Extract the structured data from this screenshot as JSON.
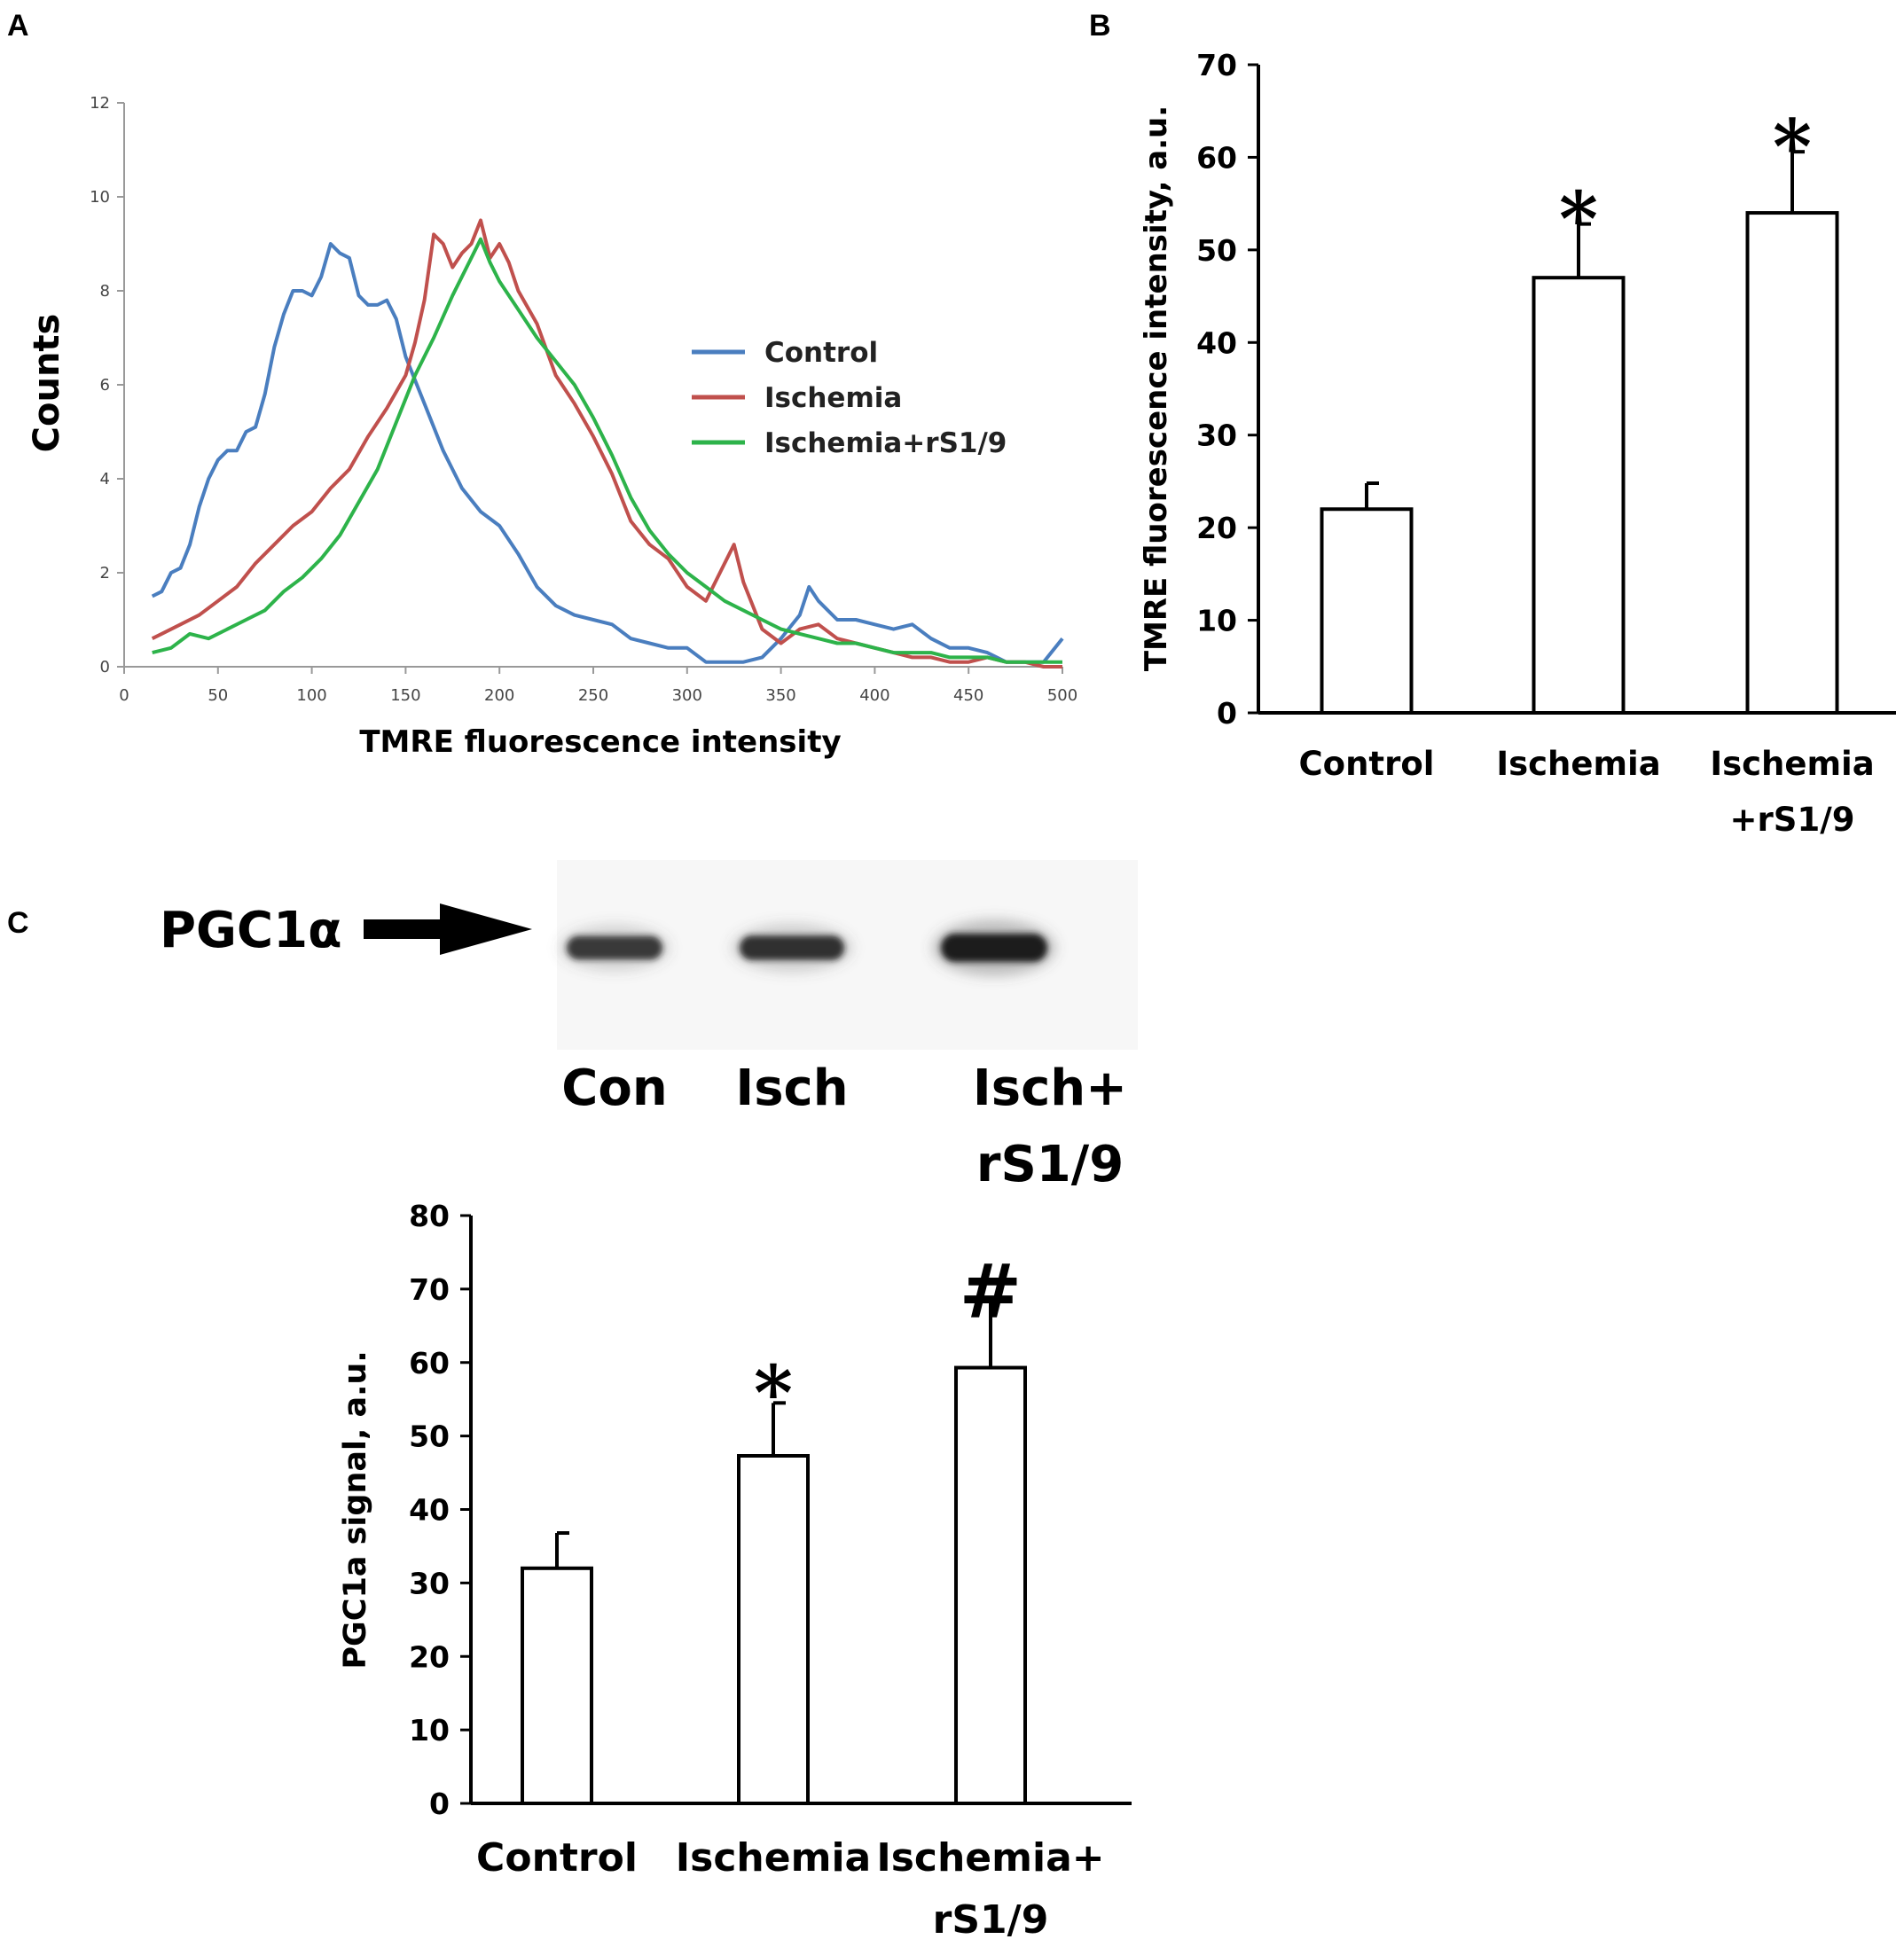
{
  "figure": {
    "panel_letters": [
      "A",
      "B",
      "C"
    ]
  },
  "chart_data": [
    {
      "panel": "A",
      "type": "line",
      "title": "",
      "xlabel": "TMRE fluorescence intensity",
      "ylabel": "Counts",
      "xlim": [
        0,
        500
      ],
      "ylim": [
        0,
        12
      ],
      "xticks": [
        0,
        50,
        100,
        150,
        200,
        250,
        300,
        350,
        400,
        450,
        500
      ],
      "yticks": [
        0,
        2,
        4,
        6,
        8,
        10,
        12
      ],
      "legend_position": "right",
      "series": [
        {
          "name": "Control",
          "color": "#4a7ebf",
          "x": [
            15,
            20,
            25,
            30,
            35,
            40,
            45,
            50,
            55,
            60,
            65,
            70,
            75,
            80,
            85,
            90,
            95,
            100,
            105,
            110,
            115,
            120,
            125,
            130,
            135,
            140,
            145,
            150,
            160,
            170,
            180,
            190,
            200,
            210,
            220,
            230,
            240,
            250,
            260,
            270,
            280,
            290,
            300,
            310,
            320,
            330,
            340,
            350,
            360,
            365,
            370,
            375,
            380,
            390,
            400,
            410,
            420,
            430,
            440,
            450,
            460,
            470,
            480,
            490,
            500
          ],
          "y": [
            1.5,
            1.6,
            2.0,
            2.1,
            2.6,
            3.4,
            4.0,
            4.4,
            4.6,
            4.6,
            5.0,
            5.1,
            5.8,
            6.8,
            7.5,
            8.0,
            8.0,
            7.9,
            8.3,
            9.0,
            8.8,
            8.7,
            7.9,
            7.7,
            7.7,
            7.8,
            7.4,
            6.6,
            5.6,
            4.6,
            3.8,
            3.3,
            3.0,
            2.4,
            1.7,
            1.3,
            1.1,
            1.0,
            0.9,
            0.6,
            0.5,
            0.4,
            0.4,
            0.1,
            0.1,
            0.1,
            0.2,
            0.6,
            1.1,
            1.7,
            1.4,
            1.2,
            1.0,
            1.0,
            0.9,
            0.8,
            0.9,
            0.6,
            0.4,
            0.4,
            0.3,
            0.1,
            0.1,
            0.1,
            0.6
          ]
        },
        {
          "name": "Ischemia",
          "color": "#c0504d",
          "x": [
            15,
            20,
            30,
            40,
            50,
            60,
            70,
            80,
            90,
            100,
            110,
            120,
            130,
            140,
            150,
            155,
            160,
            165,
            170,
            175,
            180,
            185,
            190,
            195,
            200,
            205,
            210,
            220,
            230,
            240,
            250,
            260,
            270,
            280,
            290,
            300,
            310,
            320,
            325,
            330,
            340,
            350,
            360,
            370,
            380,
            390,
            400,
            410,
            420,
            430,
            440,
            450,
            460,
            470,
            480,
            490,
            500
          ],
          "y": [
            0.6,
            0.7,
            0.9,
            1.1,
            1.4,
            1.7,
            2.2,
            2.6,
            3.0,
            3.3,
            3.8,
            4.2,
            4.9,
            5.5,
            6.2,
            6.9,
            7.8,
            9.2,
            9.0,
            8.5,
            8.8,
            9.0,
            9.5,
            8.7,
            9.0,
            8.6,
            8.0,
            7.3,
            6.2,
            5.6,
            4.9,
            4.1,
            3.1,
            2.6,
            2.3,
            1.7,
            1.4,
            2.2,
            2.6,
            1.8,
            0.8,
            0.5,
            0.8,
            0.9,
            0.6,
            0.5,
            0.4,
            0.3,
            0.2,
            0.2,
            0.1,
            0.1,
            0.2,
            0.1,
            0.1,
            0.0,
            0.0
          ]
        },
        {
          "name": "Ischemia+rS1/9",
          "color": "#2db34a",
          "x": [
            15,
            25,
            35,
            45,
            55,
            65,
            75,
            85,
            95,
            105,
            115,
            125,
            135,
            145,
            155,
            165,
            175,
            185,
            190,
            195,
            200,
            210,
            220,
            230,
            240,
            250,
            260,
            270,
            280,
            290,
            300,
            310,
            320,
            330,
            340,
            350,
            360,
            370,
            380,
            390,
            400,
            410,
            420,
            430,
            440,
            450,
            460,
            470,
            480,
            490,
            500
          ],
          "y": [
            0.3,
            0.4,
            0.7,
            0.6,
            0.8,
            1.0,
            1.2,
            1.6,
            1.9,
            2.3,
            2.8,
            3.5,
            4.2,
            5.2,
            6.2,
            7.0,
            7.9,
            8.7,
            9.1,
            8.6,
            8.2,
            7.6,
            7.0,
            6.5,
            6.0,
            5.3,
            4.5,
            3.6,
            2.9,
            2.4,
            2.0,
            1.7,
            1.4,
            1.2,
            1.0,
            0.8,
            0.7,
            0.6,
            0.5,
            0.5,
            0.4,
            0.3,
            0.3,
            0.3,
            0.2,
            0.2,
            0.2,
            0.1,
            0.1,
            0.1,
            0.1
          ]
        }
      ]
    },
    {
      "panel": "B",
      "type": "bar",
      "title": "",
      "xlabel": "",
      "ylabel": "TMRE fluorescence intensity, a.u.",
      "ylim": [
        0,
        70
      ],
      "yticks": [
        0,
        10,
        20,
        30,
        40,
        50,
        60,
        70
      ],
      "categories": [
        [
          "Control"
        ],
        [
          "Ischemia"
        ],
        [
          "Ischemia",
          "+rS1/9"
        ]
      ],
      "values": [
        22,
        47,
        54
      ],
      "errors": [
        2.8,
        5.8,
        6.6
      ],
      "annotations": [
        "",
        "*",
        "*"
      ]
    },
    {
      "panel": "C",
      "type": "bar",
      "title": "",
      "xlabel": "",
      "ylabel": "PGC1a signal, a.u.",
      "ylim": [
        0,
        80
      ],
      "yticks": [
        0,
        10,
        20,
        30,
        40,
        50,
        60,
        70,
        80
      ],
      "categories": [
        [
          "Control"
        ],
        [
          "Ischemia"
        ],
        [
          "Ischemia+",
          "rS1/9"
        ]
      ],
      "values": [
        32,
        47.3,
        59.3
      ],
      "errors": [
        4.8,
        7.2,
        9.0
      ],
      "annotations": [
        "",
        "*",
        "#"
      ]
    }
  ],
  "blot": {
    "protein_label": "PGC1α",
    "lanes": [
      {
        "label": [
          "Con"
        ],
        "intensity": 0.62
      },
      {
        "label": [
          "Isch"
        ],
        "intensity": 0.7
      },
      {
        "label": [
          "Isch+",
          "rS1/9"
        ],
        "intensity": 1.0
      }
    ]
  }
}
